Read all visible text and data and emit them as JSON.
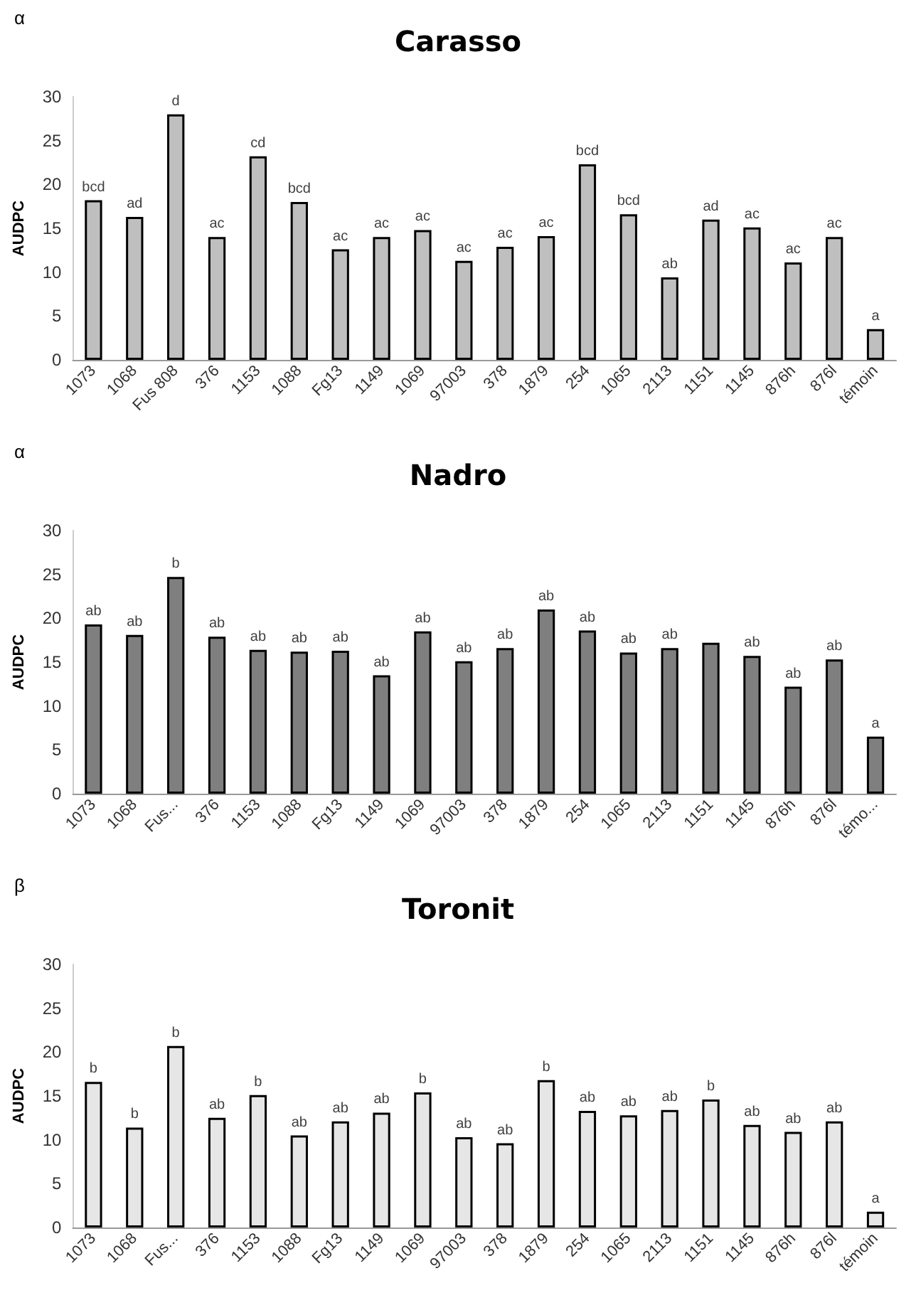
{
  "chart_data": [
    {
      "type": "bar",
      "title": "Carasso",
      "ylabel": "AUDPC",
      "categories": [
        "1073",
        "1068",
        "Fus 808",
        "376",
        "1153",
        "1088",
        "Fg13",
        "1149",
        "1069",
        "97003",
        "378",
        "1879",
        "254",
        "1065",
        "2113",
        "1151",
        "1145",
        "876h",
        "876l",
        "témoin"
      ],
      "values": [
        18.2,
        16.3,
        28,
        14,
        23.2,
        18,
        12.6,
        14,
        14.8,
        11.3,
        12.9,
        14.1,
        22.3,
        16.6,
        9.4,
        16,
        15.1,
        11.1,
        14,
        3.5
      ],
      "color": "#bfbfbf",
      "ylim": [
        0,
        30
      ],
      "yticks": [
        0,
        5,
        10,
        15,
        20,
        25,
        30
      ],
      "grid": false,
      "annotations": [
        "α",
        {
          "text": "bcd",
          "x": "1073",
          "y": 18.2
        },
        {
          "text": "ad",
          "x": "1068",
          "y": 16.3
        },
        {
          "text": "d",
          "x": "Fus 808",
          "y": 28
        },
        {
          "text": "ac",
          "x": "376",
          "y": 14
        },
        {
          "text": "cd",
          "x": "1153",
          "y": 23.2
        },
        {
          "text": "bcd",
          "x": "1088",
          "y": 18
        },
        {
          "text": "ac",
          "x": "Fg13",
          "y": 12.6
        },
        {
          "text": "ac",
          "x": "1149",
          "y": 14
        },
        {
          "text": "ac",
          "x": "1069",
          "y": 14.8
        },
        {
          "text": "ac",
          "x": "97003",
          "y": 11.3
        },
        {
          "text": "ac",
          "x": "378",
          "y": 12.9
        },
        {
          "text": "ac",
          "x": "1879",
          "y": 14.1
        },
        {
          "text": "bcd",
          "x": "254",
          "y": 22.3
        },
        {
          "text": "bcd",
          "x": "1065",
          "y": 16.6
        },
        {
          "text": "ab",
          "x": "2113",
          "y": 9.4
        },
        {
          "text": "ad",
          "x": "1151",
          "y": 16
        },
        {
          "text": "ac",
          "x": "1145",
          "y": 15.1
        },
        {
          "text": "ac",
          "x": "876h",
          "y": 11.1
        },
        {
          "text": "ac",
          "x": "876l",
          "y": 14
        },
        {
          "text": "a",
          "x": "témoin",
          "y": 3.5
        }
      ]
    },
    {
      "type": "bar",
      "title": "Nadro",
      "ylabel": "AUDPC",
      "categories": [
        "1073",
        "1068",
        "Fus...",
        "376",
        "1153",
        "1088",
        "Fg13",
        "1149",
        "1069",
        "97003",
        "378",
        "1879",
        "254",
        "1065",
        "2113",
        "1151",
        "1145",
        "876h",
        "876l",
        "témo..."
      ],
      "values": [
        19.3,
        18.1,
        24.7,
        17.9,
        16.4,
        16.2,
        16.3,
        13.5,
        18.5,
        15.1,
        16.6,
        21,
        18.6,
        16.1,
        16.6,
        17.2,
        15.7,
        12.2,
        15.3,
        6.5
      ],
      "color": "#7f7f7f",
      "ylim": [
        0,
        30
      ],
      "yticks": [
        0,
        5,
        10,
        15,
        20,
        25,
        30
      ],
      "grid": false,
      "annotations": [
        "α",
        {
          "text": "ab",
          "x": "1073",
          "y": 19.3
        },
        {
          "text": "ab",
          "x": "1068",
          "y": 18.1
        },
        {
          "text": "b",
          "x": "Fus...",
          "y": 24.7
        },
        {
          "text": "ab",
          "x": "376",
          "y": 17.9
        },
        {
          "text": "ab",
          "x": "1153",
          "y": 16.4
        },
        {
          "text": "ab",
          "x": "1088",
          "y": 16.2
        },
        {
          "text": "ab",
          "x": "Fg13",
          "y": 16.3
        },
        {
          "text": "ab",
          "x": "1149",
          "y": 13.5
        },
        {
          "text": "ab",
          "x": "1069",
          "y": 18.5
        },
        {
          "text": "ab",
          "x": "97003",
          "y": 15.1
        },
        {
          "text": "ab",
          "x": "378",
          "y": 16.6
        },
        {
          "text": "ab",
          "x": "1879",
          "y": 21
        },
        {
          "text": "ab",
          "x": "254",
          "y": 18.6
        },
        {
          "text": "ab",
          "x": "1065",
          "y": 16.1
        },
        {
          "text": "ab",
          "x": "2113",
          "y": 16.6
        },
        {
          "text": "ab",
          "x": "1145",
          "y": 15.7
        },
        {
          "text": "ab",
          "x": "876h",
          "y": 12.2
        },
        {
          "text": "ab",
          "x": "876l",
          "y": 15.3
        },
        {
          "text": "a",
          "x": "témo...",
          "y": 6.5
        }
      ]
    },
    {
      "type": "bar",
      "title": "Toronit",
      "ylabel": "AUDPC",
      "categories": [
        "1073",
        "1068",
        "Fus...",
        "376",
        "1153",
        "1088",
        "Fg13",
        "1149",
        "1069",
        "97003",
        "378",
        "1879",
        "254",
        "1065",
        "2113",
        "1151",
        "1145",
        "876h",
        "876l",
        "témoin"
      ],
      "values": [
        16.6,
        11.4,
        20.7,
        12.5,
        15.1,
        10.5,
        12.1,
        13.1,
        15.4,
        10.3,
        9.6,
        16.8,
        13.3,
        12.8,
        13.4,
        14.6,
        11.7,
        10.9,
        12.1,
        1.8
      ],
      "color": "#e6e6e6",
      "ylim": [
        0,
        30
      ],
      "yticks": [
        0,
        5,
        10,
        15,
        20,
        25,
        30
      ],
      "grid": false,
      "annotations": [
        "β",
        {
          "text": "b",
          "x": "1073",
          "y": 16.6
        },
        {
          "text": "b",
          "x": "1068",
          "y": 11.4
        },
        {
          "text": "b",
          "x": "Fus...",
          "y": 20.7
        },
        {
          "text": "ab",
          "x": "376",
          "y": 12.5
        },
        {
          "text": "b",
          "x": "1153",
          "y": 15.1
        },
        {
          "text": "ab",
          "x": "1088",
          "y": 10.5
        },
        {
          "text": "ab",
          "x": "Fg13",
          "y": 12.1
        },
        {
          "text": "ab",
          "x": "1149",
          "y": 13.1
        },
        {
          "text": "b",
          "x": "1069",
          "y": 15.4
        },
        {
          "text": "ab",
          "x": "97003",
          "y": 10.3
        },
        {
          "text": "ab",
          "x": "378",
          "y": 9.6
        },
        {
          "text": "b",
          "x": "1879",
          "y": 16.8
        },
        {
          "text": "ab",
          "x": "254",
          "y": 13.3
        },
        {
          "text": "ab",
          "x": "1065",
          "y": 12.8
        },
        {
          "text": "ab",
          "x": "2113",
          "y": 13.4
        },
        {
          "text": "b",
          "x": "1151",
          "y": 14.6
        },
        {
          "text": "ab",
          "x": "1145",
          "y": 11.7
        },
        {
          "text": "ab",
          "x": "876h",
          "y": 10.9
        },
        {
          "text": "ab",
          "x": "876l",
          "y": 12.1
        },
        {
          "text": "a",
          "x": "témoin",
          "y": 1.8
        }
      ]
    }
  ]
}
